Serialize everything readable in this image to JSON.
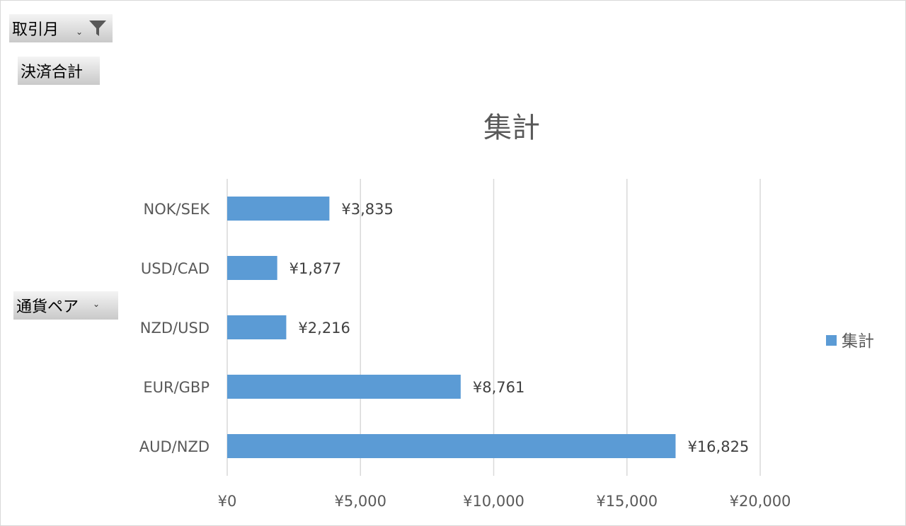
{
  "filter_field": {
    "label": "取引月",
    "icon": "filter-funnel-icon"
  },
  "values_field": {
    "label": "決済合計"
  },
  "axis_field": {
    "label": "通貨ペア",
    "icon": "dropdown-arrow-icon"
  },
  "colors": {
    "bar": "#5b9bd5",
    "grid": "#d9d9d9",
    "axis_text": "#595959",
    "title_text": "#595959"
  },
  "chart_data": {
    "type": "bar",
    "orientation": "horizontal",
    "title": "集計",
    "categories": [
      "NOK/SEK",
      "USD/CAD",
      "NZD/USD",
      "EUR/GBP",
      "AUD/NZD"
    ],
    "series": [
      {
        "name": "集計",
        "values": [
          3835,
          1877,
          2216,
          8761,
          16825
        ]
      }
    ],
    "data_labels": [
      "¥3,835",
      "¥1,877",
      "¥2,216",
      "¥8,761",
      "¥16,825"
    ],
    "x_ticks": [
      "¥0",
      "¥5,000",
      "¥10,000",
      "¥15,000",
      "¥20,000"
    ],
    "x_tick_values": [
      0,
      5000,
      10000,
      15000,
      20000
    ],
    "xlim": [
      0,
      20000
    ],
    "xlabel": "",
    "ylabel": "",
    "grid": "vertical",
    "legend_position": "right"
  }
}
